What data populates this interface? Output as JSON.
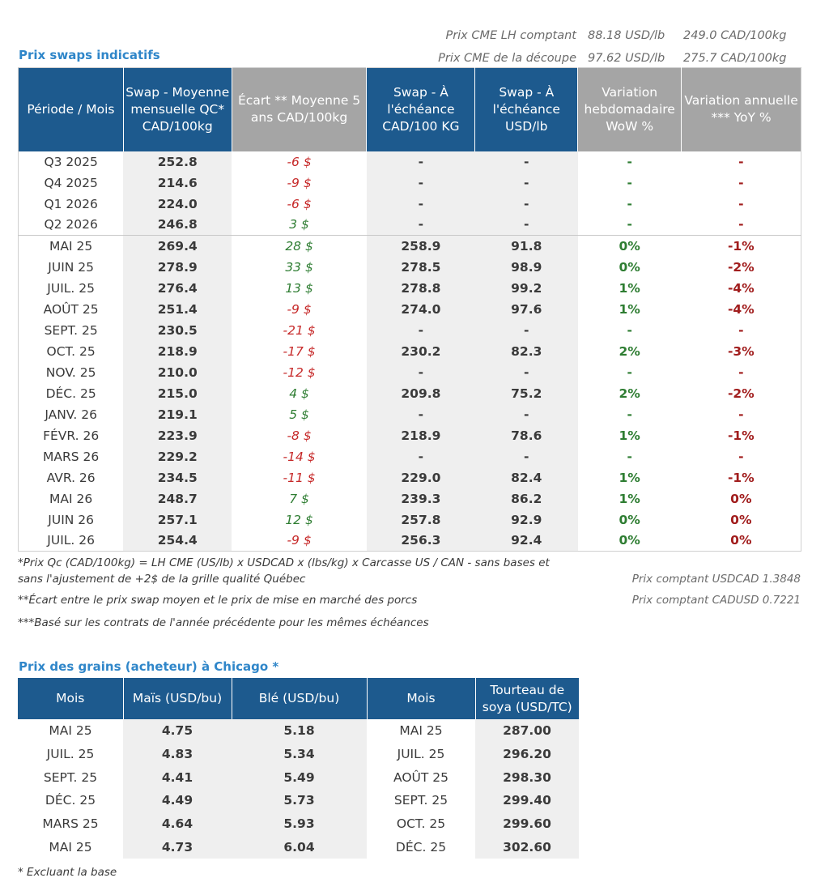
{
  "top_prices": [
    {
      "label": "Prix CME LH comptant",
      "usd": "88.18 USD/lb",
      "cad": "249.0 CAD/100kg"
    },
    {
      "label": "Prix CME de la découpe",
      "usd": "97.62 USD/lb",
      "cad": "275.7 CAD/100kg"
    }
  ],
  "swap": {
    "title": "Prix swaps indicatifs",
    "headers": [
      "Période / Mois",
      "Swap - Moyenne mensuelle QC* CAD/100kg",
      "Écart ** Moyenne 5 ans CAD/100kg",
      "Swap - À l'échéance CAD/100 KG",
      "Swap - À l'échéance USD/lb",
      "Variation hebdomadaire WoW %",
      "Variation annuelle *** YoY %"
    ],
    "quarters": [
      {
        "period": "Q3 2025",
        "avg": "252.8",
        "gap": "-6 $",
        "gap_sign": "neg",
        "cad": "-",
        "usd": "-",
        "wow": "-",
        "yoy": "-"
      },
      {
        "period": "Q4 2025",
        "avg": "214.6",
        "gap": "-9 $",
        "gap_sign": "neg",
        "cad": "-",
        "usd": "-",
        "wow": "-",
        "yoy": "-"
      },
      {
        "period": "Q1 2026",
        "avg": "224.0",
        "gap": "-6 $",
        "gap_sign": "neg",
        "cad": "-",
        "usd": "-",
        "wow": "-",
        "yoy": "-"
      },
      {
        "period": "Q2 2026",
        "avg": "246.8",
        "gap": "3 $",
        "gap_sign": "pos",
        "cad": "-",
        "usd": "-",
        "wow": "-",
        "yoy": "-"
      }
    ],
    "months": [
      {
        "period": "MAI 25",
        "avg": "269.4",
        "gap": "28 $",
        "gap_sign": "pos",
        "cad": "258.9",
        "usd": "91.8",
        "wow": "0%",
        "yoy": "-1%"
      },
      {
        "period": "JUIN 25",
        "avg": "278.9",
        "gap": "33 $",
        "gap_sign": "pos",
        "cad": "278.5",
        "usd": "98.9",
        "wow": "0%",
        "yoy": "-2%"
      },
      {
        "period": "JUIL. 25",
        "avg": "276.4",
        "gap": "13 $",
        "gap_sign": "pos",
        "cad": "278.8",
        "usd": "99.2",
        "wow": "1%",
        "yoy": "-4%"
      },
      {
        "period": "AOÛT 25",
        "avg": "251.4",
        "gap": "-9 $",
        "gap_sign": "neg",
        "cad": "274.0",
        "usd": "97.6",
        "wow": "1%",
        "yoy": "-4%"
      },
      {
        "period": "SEPT. 25",
        "avg": "230.5",
        "gap": "-21 $",
        "gap_sign": "neg",
        "cad": "-",
        "usd": "-",
        "wow": "-",
        "yoy": "-"
      },
      {
        "period": "OCT. 25",
        "avg": "218.9",
        "gap": "-17 $",
        "gap_sign": "neg",
        "cad": "230.2",
        "usd": "82.3",
        "wow": "2%",
        "yoy": "-3%"
      },
      {
        "period": "NOV. 25",
        "avg": "210.0",
        "gap": "-12 $",
        "gap_sign": "neg",
        "cad": "-",
        "usd": "-",
        "wow": "-",
        "yoy": "-"
      },
      {
        "period": "DÉC. 25",
        "avg": "215.0",
        "gap": "4 $",
        "gap_sign": "pos",
        "cad": "209.8",
        "usd": "75.2",
        "wow": "2%",
        "yoy": "-2%"
      },
      {
        "period": "JANV. 26",
        "avg": "219.1",
        "gap": "5 $",
        "gap_sign": "pos",
        "cad": "-",
        "usd": "-",
        "wow": "-",
        "yoy": "-"
      },
      {
        "period": "FÉVR. 26",
        "avg": "223.9",
        "gap": "-8 $",
        "gap_sign": "neg",
        "cad": "218.9",
        "usd": "78.6",
        "wow": "1%",
        "yoy": "-1%"
      },
      {
        "period": "MARS 26",
        "avg": "229.2",
        "gap": "-14 $",
        "gap_sign": "neg",
        "cad": "-",
        "usd": "-",
        "wow": "-",
        "yoy": "-"
      },
      {
        "period": "AVR. 26",
        "avg": "234.5",
        "gap": "-11 $",
        "gap_sign": "neg",
        "cad": "229.0",
        "usd": "82.4",
        "wow": "1%",
        "yoy": "-1%"
      },
      {
        "period": "MAI 26",
        "avg": "248.7",
        "gap": "7 $",
        "gap_sign": "pos",
        "cad": "239.3",
        "usd": "86.2",
        "wow": "1%",
        "yoy": "0%"
      },
      {
        "period": "JUIN 26",
        "avg": "257.1",
        "gap": "12 $",
        "gap_sign": "pos",
        "cad": "257.8",
        "usd": "92.9",
        "wow": "0%",
        "yoy": "0%"
      },
      {
        "period": "JUIL. 26",
        "avg": "254.4",
        "gap": "-9 $",
        "gap_sign": "neg",
        "cad": "256.3",
        "usd": "92.4",
        "wow": "0%",
        "yoy": "0%"
      }
    ],
    "notes": [
      "*Prix Qc (CAD/100kg) = LH CME (US/lb) x USDCAD x (lbs/kg) x Carcasse US / CAN - sans bases et",
      "sans l'ajustement de +2$ de la grille qualité Québec",
      "**Écart entre le prix swap moyen et le prix de mise en marché des porcs",
      "***Basé sur les contrats de l'année précédente pour les mêmes échéances"
    ],
    "fx": [
      "Prix comptant USDCAD 1.3848",
      "Prix comptant CADUSD 0.7221"
    ]
  },
  "grains": {
    "title": "Prix des grains (acheteur) à Chicago *",
    "headers": [
      "Mois",
      "Maïs (USD/bu)",
      "Blé (USD/bu)",
      "Mois",
      "Tourteau de soya (USD/TC)"
    ],
    "rows": [
      {
        "month1": "MAI 25",
        "corn": "4.75",
        "wheat": "5.18",
        "month2": "MAI 25",
        "soy": "287.00"
      },
      {
        "month1": "JUIL. 25",
        "corn": "4.83",
        "wheat": "5.34",
        "month2": "JUIL. 25",
        "soy": "296.20"
      },
      {
        "month1": "SEPT. 25",
        "corn": "4.41",
        "wheat": "5.49",
        "month2": "AOÛT 25",
        "soy": "298.30"
      },
      {
        "month1": "DÉC. 25",
        "corn": "4.49",
        "wheat": "5.73",
        "month2": "SEPT. 25",
        "soy": "299.40"
      },
      {
        "month1": "MARS 25",
        "corn": "4.64",
        "wheat": "5.93",
        "month2": "OCT. 25",
        "soy": "299.60"
      },
      {
        "month1": "MAI 25",
        "corn": "4.73",
        "wheat": "6.04",
        "month2": "DÉC. 25",
        "soy": "302.60"
      }
    ],
    "note": "* Excluant la base"
  }
}
